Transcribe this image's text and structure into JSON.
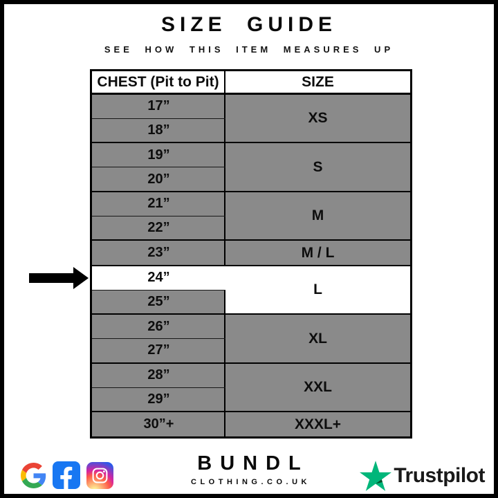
{
  "page": {
    "title": "SIZE GUIDE",
    "subtitle": "SEE HOW THIS ITEM MEASURES UP"
  },
  "chart_data": {
    "type": "table",
    "title": "SIZE GUIDE",
    "subtitle": "SEE HOW THIS ITEM MEASURES UP",
    "columns": [
      "CHEST (Pit to Pit)",
      "SIZE"
    ],
    "rows": [
      [
        "17”",
        "XS"
      ],
      [
        "18”",
        "XS"
      ],
      [
        "19”",
        "S"
      ],
      [
        "20”",
        "S"
      ],
      [
        "21”",
        "M"
      ],
      [
        "22”",
        "M"
      ],
      [
        "23”",
        "M / L"
      ],
      [
        "24”",
        "L"
      ],
      [
        "25”",
        "L"
      ],
      [
        "26”",
        "XL"
      ],
      [
        "27”",
        "XL"
      ],
      [
        "28”",
        "XXL"
      ],
      [
        "29”",
        "XXL"
      ],
      [
        "30”+",
        "XXXL+"
      ]
    ],
    "highlighted_row": "24”"
  },
  "table": {
    "headers": [
      "CHEST (Pit to Pit)",
      "SIZE"
    ],
    "groups": [
      {
        "size": "XS",
        "chest": [
          "17”",
          "18”"
        ]
      },
      {
        "size": "S",
        "chest": [
          "19”",
          "20”"
        ]
      },
      {
        "size": "M",
        "chest": [
          "21”",
          "22”"
        ]
      },
      {
        "size": "M / L",
        "chest": [
          "23”"
        ]
      },
      {
        "size": "L",
        "chest": [
          "24”",
          "25”"
        ],
        "highlighted": true,
        "highlight_index": 0
      },
      {
        "size": "XL",
        "chest": [
          "26”",
          "27”"
        ]
      },
      {
        "size": "XXL",
        "chest": [
          "28”",
          "29”"
        ]
      },
      {
        "size": "XXXL+",
        "chest": [
          "30”+"
        ]
      }
    ],
    "colors": {
      "row_gray": "#8a8a8a",
      "highlight_white": "#ffffff",
      "border_black": "#000000"
    }
  },
  "annotation": {
    "selected_chest": "24”",
    "marker": "black-right-arrow"
  },
  "footer": {
    "brand_name": "BUNDL",
    "brand_domain": "CLOTHING.CO.UK",
    "trustpilot_label": "Trustpilot",
    "social_icons": [
      "google-icon",
      "facebook-icon",
      "instagram-icon"
    ],
    "colors": {
      "trustpilot_green": "#00b67a",
      "trustpilot_dark_green": "#005128",
      "facebook_blue": "#1877f2",
      "google_red": "#ea4335",
      "google_blue": "#4285f4",
      "google_yellow": "#fbbc05",
      "google_green": "#34a853"
    }
  }
}
